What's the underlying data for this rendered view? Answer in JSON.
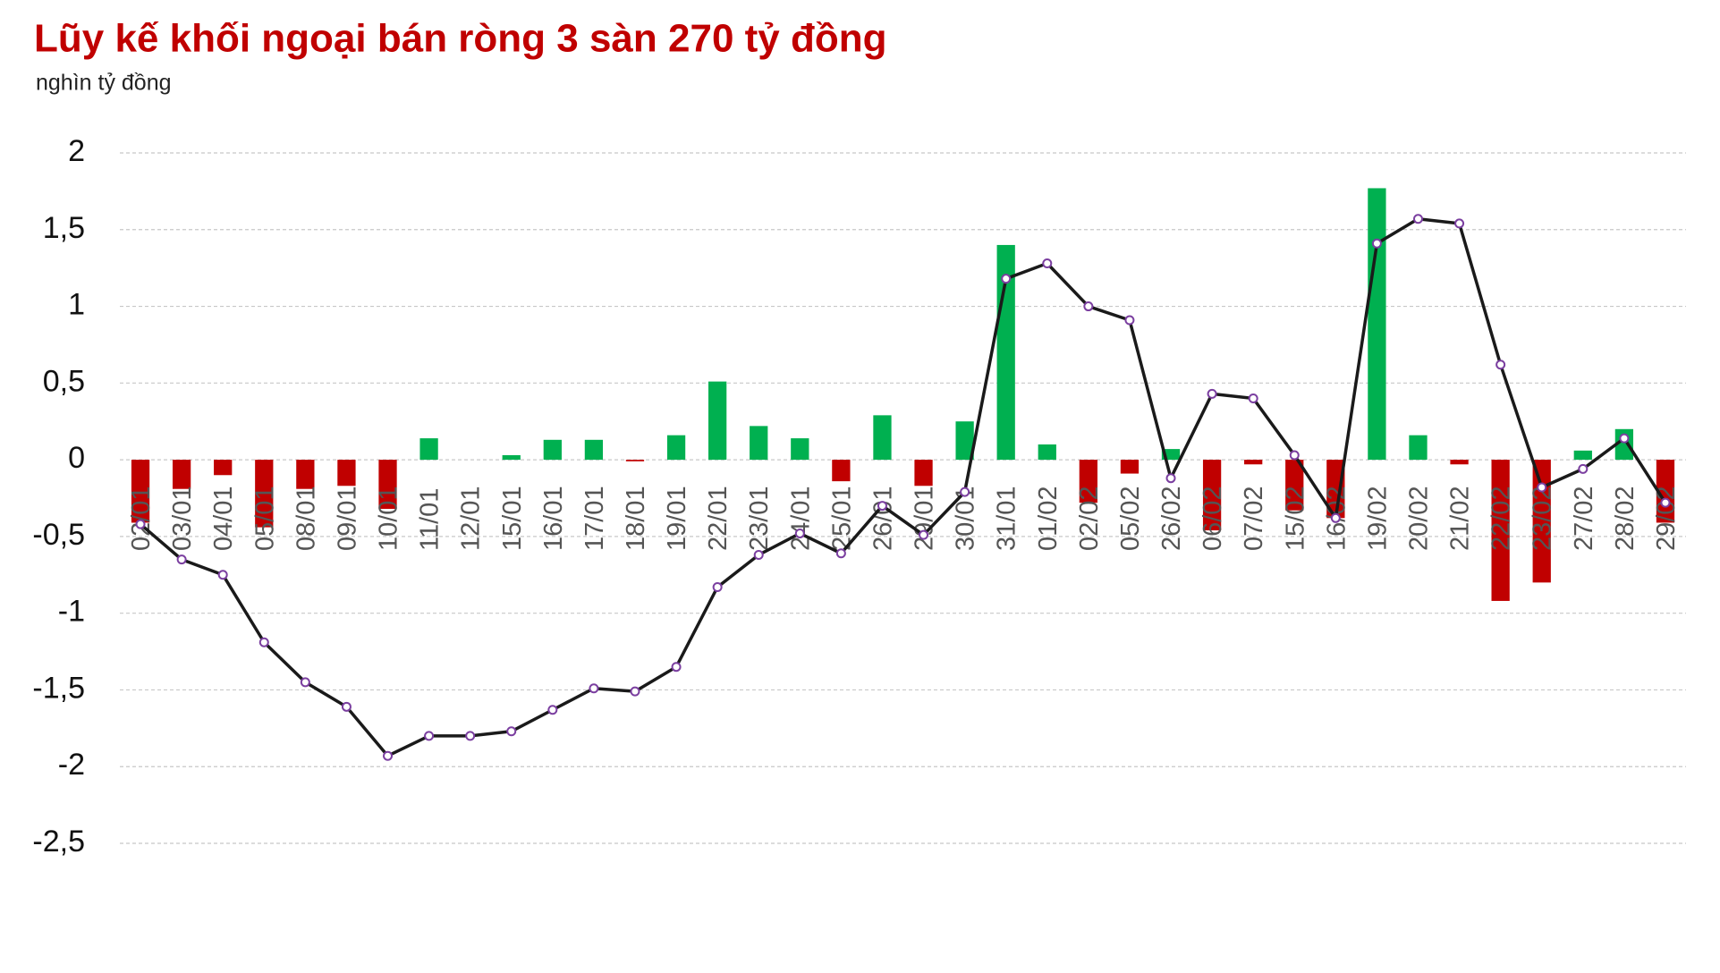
{
  "chart_data": {
    "type": "bar-line",
    "title": "Lũy kế khối ngoại bán ròng 3 sàn 270 tỷ đồng",
    "subtitle": "nghìn tỷ đồng",
    "categories": [
      "02/01",
      "03/01",
      "04/01",
      "05/01",
      "08/01",
      "09/01",
      "10/01",
      "11/01",
      "12/01",
      "15/01",
      "16/01",
      "17/01",
      "18/01",
      "19/01",
      "22/01",
      "23/01",
      "24/01",
      "25/01",
      "26/01",
      "29/01",
      "30/01",
      "31/01",
      "01/02",
      "02/02",
      "05/02",
      "26/02",
      "06/02",
      "07/02",
      "15/02",
      "16/02",
      "19/02",
      "20/02",
      "21/02",
      "22/02",
      "23/02",
      "27/02",
      "28/02",
      "29/02"
    ],
    "bars": {
      "positive_color": "#00b050",
      "negative_color": "#c00000",
      "values": [
        -0.41,
        -0.19,
        -0.1,
        -0.44,
        -0.19,
        -0.17,
        -0.32,
        0.14,
        0,
        0.03,
        0.13,
        0.13,
        -0.01,
        0.16,
        0.51,
        0.22,
        0.14,
        -0.14,
        0.29,
        -0.17,
        0.25,
        1.4,
        0.1,
        -0.28,
        -0.09,
        0.07,
        -0.46,
        -0.03,
        -0.33,
        -0.38,
        1.77,
        0.16,
        -0.03,
        -0.92,
        -0.8,
        0.06,
        0.2,
        -0.41
      ]
    },
    "line": {
      "color": "#1a1a1a",
      "marker_color": "#7b3fa0",
      "values": [
        -0.42,
        -0.65,
        -0.75,
        -1.19,
        -1.45,
        -1.61,
        -1.93,
        -1.8,
        -1.8,
        -1.77,
        -1.63,
        -1.49,
        -1.51,
        -1.35,
        -0.83,
        -0.62,
        -0.48,
        -0.61,
        -0.3,
        -0.49,
        -0.21,
        1.18,
        1.28,
        1.0,
        0.91,
        -0.12,
        0.43,
        0.4,
        0.03,
        -0.38,
        1.41,
        1.57,
        1.54,
        0.62,
        -0.18,
        -0.06,
        0.14,
        -0.28
      ]
    },
    "ylim": [
      -2.5,
      2
    ],
    "yticks": [
      {
        "value": -2.5,
        "label": "-2,5"
      },
      -2,
      {
        "value": -1.5,
        "label": "-1,5"
      },
      -1,
      {
        "value": -0.5,
        "label": "-0,5"
      },
      0,
      {
        "value": 0.5,
        "label": "0,5"
      },
      1,
      {
        "value": 1.5,
        "label": "1,5"
      },
      2
    ],
    "grid": true
  }
}
